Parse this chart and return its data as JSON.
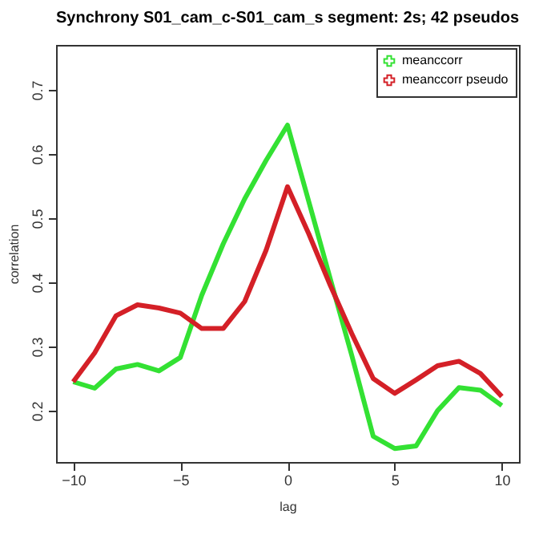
{
  "chart_data": {
    "type": "line",
    "title": "Synchrony S01_cam_c-S01_cam_s segment: 2s; 42 pseudos",
    "xlabel": "lag",
    "ylabel": "correlation",
    "x": [
      -10,
      -9,
      -8,
      -7,
      -6,
      -5,
      -4,
      -3,
      -2,
      -1,
      0,
      1,
      2,
      3,
      4,
      5,
      6,
      7,
      8,
      9,
      10
    ],
    "series": [
      {
        "name": "meanccorr",
        "color": "#33e133",
        "values": [
          0.245,
          0.235,
          0.265,
          0.272,
          0.262,
          0.283,
          0.38,
          0.46,
          0.53,
          0.59,
          0.645,
          0.525,
          0.405,
          0.286,
          0.16,
          0.141,
          0.145,
          0.2,
          0.236,
          0.232,
          0.208
        ]
      },
      {
        "name": "meanccorr pseudo",
        "color": "#d42027",
        "values": [
          0.245,
          0.29,
          0.348,
          0.365,
          0.36,
          0.352,
          0.328,
          0.328,
          0.37,
          0.45,
          0.549,
          0.475,
          0.395,
          0.32,
          0.25,
          0.227,
          0.248,
          0.27,
          0.277,
          0.258,
          0.222
        ]
      }
    ],
    "xlim": [
      -10.8,
      10.8
    ],
    "xticks": [
      -10,
      -5,
      0,
      5,
      10
    ],
    "ylim": [
      0.12,
      0.77
    ],
    "yticks": [
      0.2,
      0.3,
      0.4,
      0.5,
      0.6,
      0.7
    ],
    "legend": "top right",
    "grid": false,
    "marker": "none",
    "line_style": "solid"
  }
}
